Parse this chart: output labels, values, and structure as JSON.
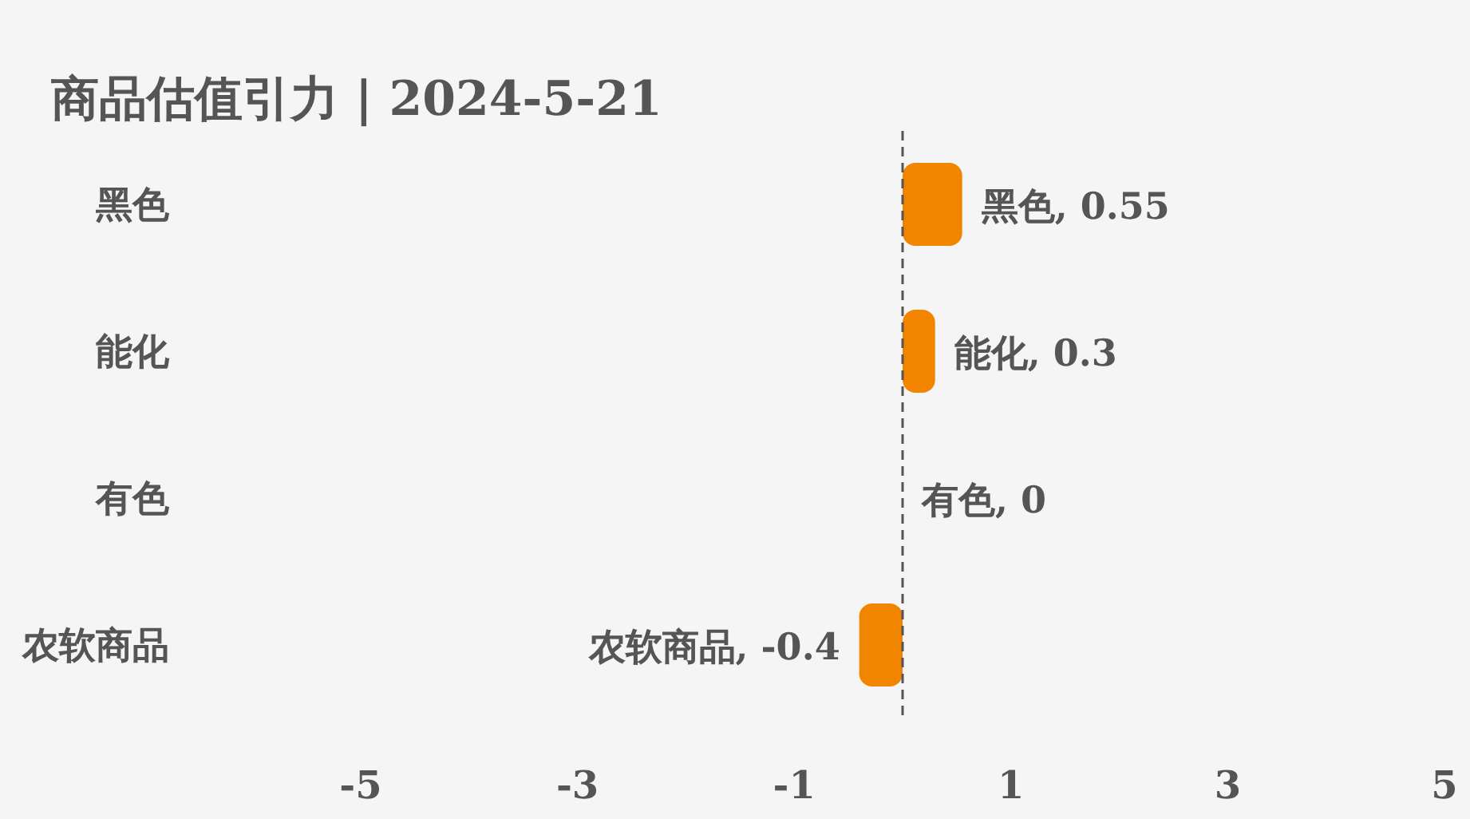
{
  "chart_data": {
    "type": "bar",
    "orientation": "horizontal",
    "title": "商品估值引力 | 2024-5-21",
    "categories": [
      "黑色",
      "能化",
      "有色",
      "农软商品"
    ],
    "values": [
      0.55,
      0.3,
      0,
      -0.4
    ],
    "color": "#f28500",
    "value_labels": [
      "黑色, 0.55",
      "能化, 0.3",
      "有色, 0",
      "农软商品, -0.4"
    ],
    "xlim": [
      -5,
      5
    ],
    "xticks": [
      -5,
      -3,
      -1,
      1,
      3,
      5
    ],
    "ref_lines": [
      {
        "axis": "x",
        "value": 0,
        "line_style": "dashed",
        "color": "#555555"
      }
    ],
    "grid": false
  }
}
